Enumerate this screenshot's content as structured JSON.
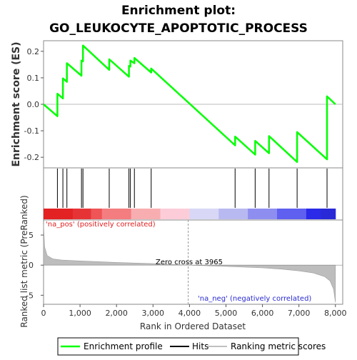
{
  "chart_data": {
    "type": "line",
    "title_line1": "Enrichment plot:",
    "title_line2": "GO_LEUKOCYTE_APOPTOTIC_PROCESS",
    "ylabel_top": "Enrichment score (ES)",
    "ylabel_bottom": "Ranked list metric (PreRanked)",
    "xlabel": "Rank in Ordered Dataset",
    "xlim": [
      0,
      8200
    ],
    "es_ylim": [
      -0.24,
      0.24
    ],
    "metric_ylim": [
      -6.5,
      7.5
    ],
    "x_ticks": [
      {
        "value": 0,
        "label": "0"
      },
      {
        "value": 1000,
        "label": "1,000"
      },
      {
        "value": 2000,
        "label": "2,000"
      },
      {
        "value": 3000,
        "label": "3,000"
      },
      {
        "value": 4000,
        "label": "4,000"
      },
      {
        "value": 5000,
        "label": "5,000"
      },
      {
        "value": 6000,
        "label": "6,000"
      },
      {
        "value": 7000,
        "label": "7,000"
      },
      {
        "value": 8000,
        "label": "8,000"
      }
    ],
    "es_ticks": [
      {
        "value": 0.2,
        "label": "0.2"
      },
      {
        "value": 0.1,
        "label": "0.1"
      },
      {
        "value": 0.0,
        "label": "0.0"
      },
      {
        "value": -0.1,
        "label": "-0.1"
      },
      {
        "value": -0.2,
        "label": "-0.2"
      }
    ],
    "metric_ticks": [
      {
        "value": 5,
        "label": "5"
      },
      {
        "value": 0,
        "label": "0"
      },
      {
        "value": -5,
        "label": "-5"
      }
    ],
    "series": [
      {
        "name": "Enrichment profile",
        "color": "#00ff00",
        "points": [
          [
            0,
            0.0
          ],
          [
            380,
            -0.045
          ],
          [
            380,
            0.04
          ],
          [
            530,
            0.022
          ],
          [
            530,
            0.098
          ],
          [
            640,
            0.085
          ],
          [
            640,
            0.155
          ],
          [
            1040,
            0.108
          ],
          [
            1040,
            0.165
          ],
          [
            1080,
            0.162
          ],
          [
            1080,
            0.222
          ],
          [
            1800,
            0.13
          ],
          [
            1800,
            0.17
          ],
          [
            2340,
            0.104
          ],
          [
            2340,
            0.145
          ],
          [
            2380,
            0.142
          ],
          [
            2380,
            0.165
          ],
          [
            2490,
            0.155
          ],
          [
            2490,
            0.175
          ],
          [
            2950,
            0.12
          ],
          [
            2950,
            0.135
          ],
          [
            5250,
            -0.155
          ],
          [
            5250,
            -0.122
          ],
          [
            5800,
            -0.19
          ],
          [
            5800,
            -0.138
          ],
          [
            6180,
            -0.185
          ],
          [
            6180,
            -0.12
          ],
          [
            6950,
            -0.218
          ],
          [
            6950,
            -0.105
          ],
          [
            7770,
            -0.208
          ],
          [
            7770,
            0.03
          ],
          [
            8000,
            0.0
          ]
        ]
      }
    ],
    "hits": [
      380,
      530,
      640,
      1040,
      1080,
      1800,
      2340,
      2380,
      2490,
      2950,
      5250,
      5800,
      6180,
      6950,
      7770
    ],
    "metric_profile": [
      [
        0,
        6.8
      ],
      [
        30,
        3.0
      ],
      [
        100,
        1.6
      ],
      [
        250,
        1.05
      ],
      [
        500,
        0.85
      ],
      [
        1000,
        0.7
      ],
      [
        2000,
        0.45
      ],
      [
        3000,
        0.25
      ],
      [
        3965,
        0.0
      ],
      [
        5000,
        -0.2
      ],
      [
        6000,
        -0.45
      ],
      [
        6500,
        -0.65
      ],
      [
        7000,
        -0.95
      ],
      [
        7400,
        -1.3
      ],
      [
        7700,
        -1.9
      ],
      [
        7850,
        -2.6
      ],
      [
        7950,
        -4.0
      ],
      [
        8000,
        -6.2
      ]
    ],
    "heatmap_colors": [
      "#e8262a",
      "#ef5457",
      "#f47d80",
      "#f8aeb0",
      "#fccdd9",
      "#d8d8f6",
      "#b9b9f1",
      "#8e8ef0",
      "#5f5ff0",
      "#2a2ae8"
    ],
    "zero_cross_label": "Zero cross at 3965",
    "zero_cross_value": 3965,
    "na_pos_label": "'na_pos' (positively correlated)",
    "na_neg_label": "'na_neg' (negatively correlated)",
    "legend": [
      {
        "label": "Enrichment profile",
        "color": "#00ff00"
      },
      {
        "label": "Hits",
        "color": "#000000"
      },
      {
        "label": "Ranking metric scores",
        "color": "#c0c0c0"
      }
    ],
    "na_pos_color": "#e02020",
    "na_neg_color": "#2a2ad0",
    "metric_fill_color": "#bdbdbd"
  }
}
